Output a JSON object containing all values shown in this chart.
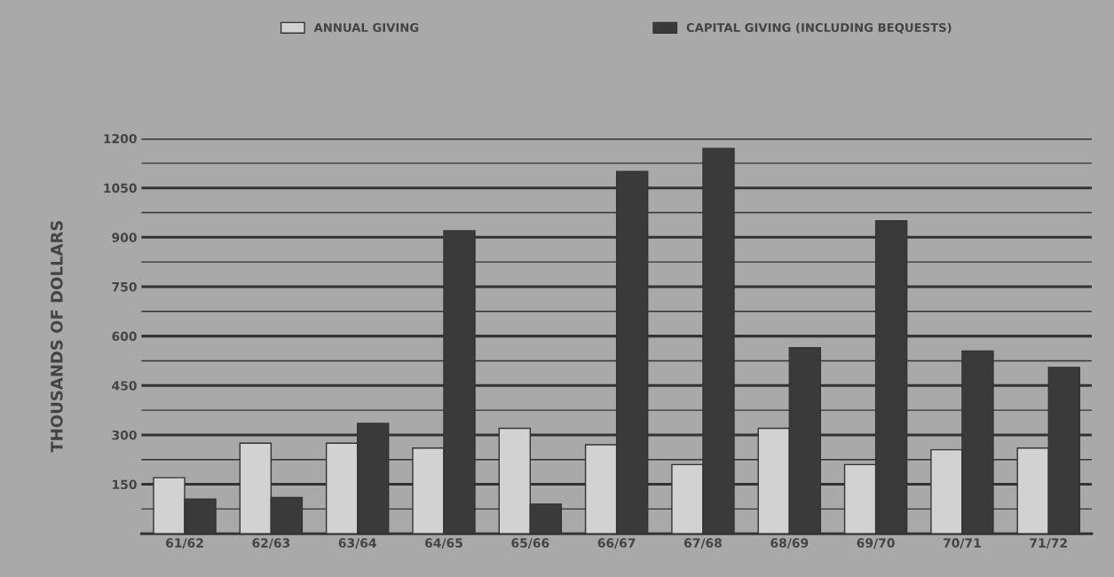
{
  "chart_data": {
    "type": "bar",
    "categories": [
      "61/62",
      "62/63",
      "63/64",
      "64/65",
      "65/66",
      "66/67",
      "67/68",
      "68/69",
      "69/70",
      "70/71",
      "71/72"
    ],
    "series": [
      {
        "name": "ANNUAL GIVING",
        "color": "#d2d2d2",
        "values": [
          170,
          275,
          275,
          260,
          320,
          270,
          210,
          320,
          210,
          255,
          260
        ]
      },
      {
        "name": "CAPITAL GIVING (INCLUDING BEQUESTS)",
        "color": "#3a3a3a",
        "values": [
          105,
          110,
          335,
          920,
          90,
          1100,
          1170,
          565,
          950,
          555,
          505
        ]
      }
    ],
    "ylabel": "THOUSANDS OF DOLLARS",
    "ylim": [
      0,
      1200
    ],
    "yticks": [
      {
        "value": 75,
        "label": null
      },
      150,
      {
        "value": 225,
        "label": null
      },
      300,
      {
        "value": 375,
        "label": null
      },
      450,
      {
        "value": 525,
        "label": null
      },
      600,
      {
        "value": 675,
        "label": null
      },
      750,
      {
        "value": 825,
        "label": null
      },
      900,
      {
        "value": 975,
        "label": null
      },
      1050,
      {
        "value": 1125,
        "label": null
      },
      1200
    ],
    "grid": "y",
    "legend": "top"
  }
}
